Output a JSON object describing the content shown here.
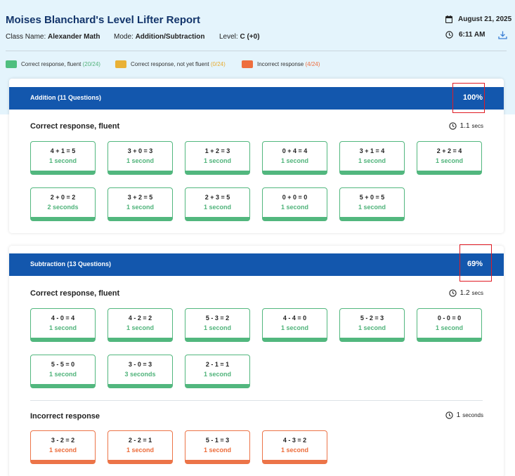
{
  "report": {
    "title": "Moises Blanchard's Level Lifter Report",
    "class_label": "Class Name:",
    "class_value": "Alexander Math",
    "mode_label": "Mode:",
    "mode_value": "Addition/Subtraction",
    "level_label": "Level:",
    "level_value": "C (+0)",
    "date": "August 21, 2025",
    "time": "6:11 AM"
  },
  "legend": [
    {
      "label": "Correct response, fluent",
      "count": "(20/24)",
      "color": "#4fbf7f"
    },
    {
      "label": "Correct response, not yet fluent",
      "count": "(0/24)",
      "color": "#e9b136"
    },
    {
      "label": "Incorrect response",
      "count": "(4/24)",
      "color": "#ee6e3e"
    }
  ],
  "sections": [
    {
      "title": "Addition (11 Questions)",
      "percent": "100%",
      "groups": [
        {
          "title": "Correct response, fluent",
          "avg_time": "1.1",
          "avg_unit": "secs",
          "status": "green",
          "items": [
            {
              "eq": "4 + 1 = 5",
              "time": "1 second"
            },
            {
              "eq": "3 + 0 = 3",
              "time": "1 second"
            },
            {
              "eq": "1 + 2 = 3",
              "time": "1 second"
            },
            {
              "eq": "0 + 4 = 4",
              "time": "1 second"
            },
            {
              "eq": "3 + 1 = 4",
              "time": "1 second"
            },
            {
              "eq": "2 + 2 = 4",
              "time": "1 second"
            },
            {
              "eq": "2 + 0 = 2",
              "time": "2 seconds"
            },
            {
              "eq": "3 + 2 = 5",
              "time": "1 second"
            },
            {
              "eq": "2 + 3 = 5",
              "time": "1 second"
            },
            {
              "eq": "0 + 0 = 0",
              "time": "1 second"
            },
            {
              "eq": "5 + 0 = 5",
              "time": "1 second"
            }
          ]
        }
      ]
    },
    {
      "title": "Subtraction (13 Questions)",
      "percent": "69%",
      "groups": [
        {
          "title": "Correct response, fluent",
          "avg_time": "1.2",
          "avg_unit": "secs",
          "status": "green",
          "items": [
            {
              "eq": "4 - 0 = 4",
              "time": "1 second"
            },
            {
              "eq": "4 - 2 = 2",
              "time": "1 second"
            },
            {
              "eq": "5 - 3 = 2",
              "time": "1 second"
            },
            {
              "eq": "4 - 4 = 0",
              "time": "1 second"
            },
            {
              "eq": "5 - 2 = 3",
              "time": "1 second"
            },
            {
              "eq": "0 - 0 = 0",
              "time": "1 second"
            },
            {
              "eq": "5 - 5 = 0",
              "time": "1 second"
            },
            {
              "eq": "3 - 0 = 3",
              "time": "3 seconds"
            },
            {
              "eq": "2 - 1 = 1",
              "time": "1 second"
            }
          ]
        },
        {
          "title": "Incorrect response",
          "avg_time": "1",
          "avg_unit": "seconds",
          "status": "orange",
          "items": [
            {
              "eq": "3 - 2 = 2",
              "time": "1 second"
            },
            {
              "eq": "2 - 2 = 1",
              "time": "1 second"
            },
            {
              "eq": "5 - 1 = 3",
              "time": "1 second"
            },
            {
              "eq": "4 - 3 = 2",
              "time": "1 second"
            }
          ]
        }
      ]
    }
  ]
}
